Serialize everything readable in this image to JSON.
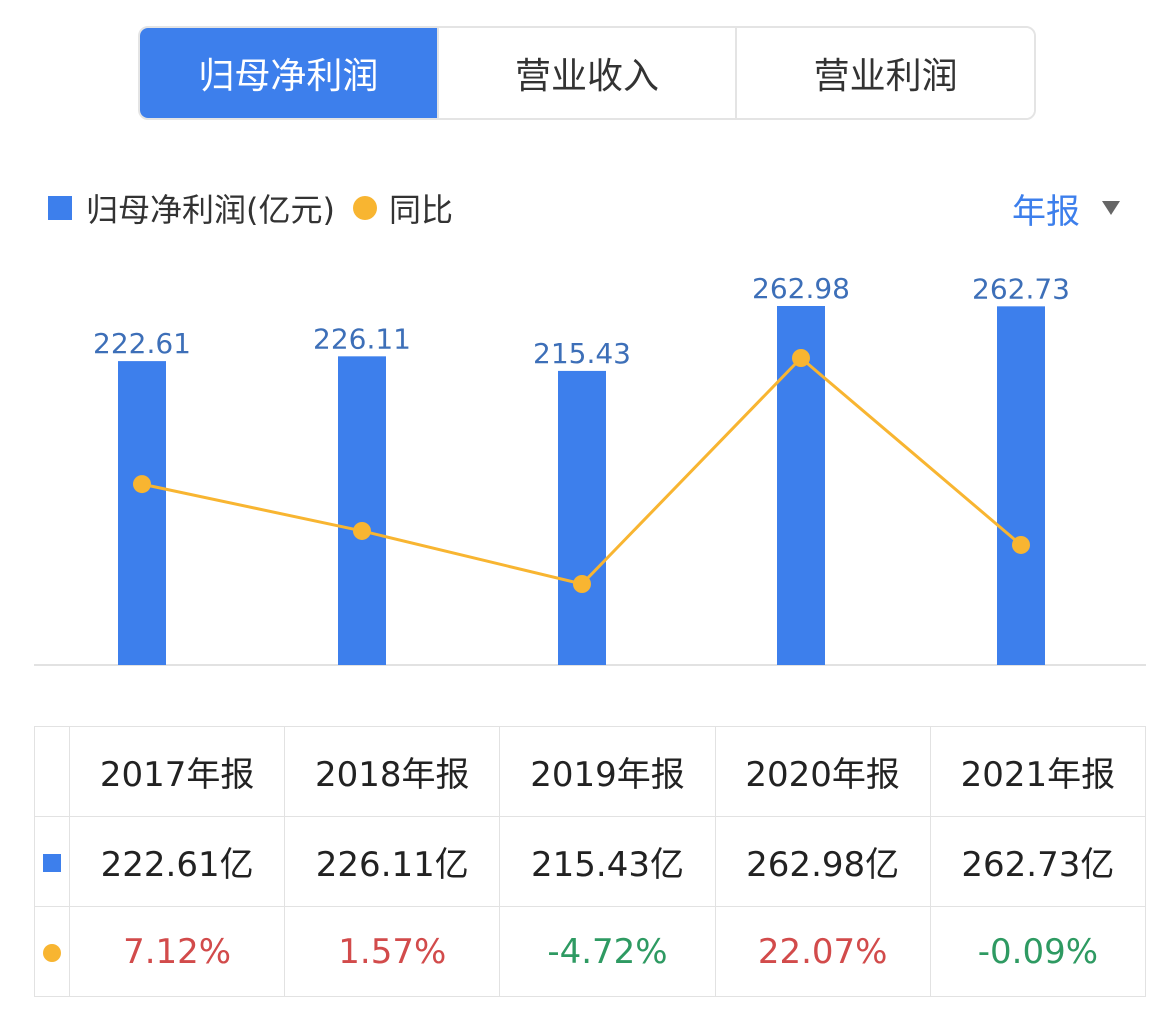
{
  "tabs": [
    {
      "label": "归母净利润",
      "active": true
    },
    {
      "label": "营业收入",
      "active": false
    },
    {
      "label": "营业利润",
      "active": false
    }
  ],
  "legend": {
    "bar_label": "归母净利润(亿元)",
    "line_label": "同比"
  },
  "period_selector": {
    "label": "年报"
  },
  "colors": {
    "bar": "#3d7fec",
    "line": "#f8b531",
    "bar_label": "#3d6fb8",
    "positive": "#d24b4b",
    "negative": "#2e9a62"
  },
  "chart_data": {
    "type": "bar",
    "categories": [
      "2017年报",
      "2018年报",
      "2019年报",
      "2020年报",
      "2021年报"
    ],
    "series": [
      {
        "name": "归母净利润(亿元)",
        "type": "bar",
        "values": [
          222.61,
          226.11,
          215.43,
          262.98,
          262.73
        ]
      },
      {
        "name": "同比",
        "type": "line",
        "values": [
          7.12,
          1.57,
          -4.72,
          22.07,
          -0.09
        ]
      }
    ],
    "bar_value_labels": [
      "222.61",
      "226.11",
      "215.43",
      "262.98",
      "262.73"
    ],
    "ylim": [
      0,
      262.98
    ],
    "grid": false
  },
  "table": {
    "headers": [
      "2017年报",
      "2018年报",
      "2019年报",
      "2020年报",
      "2021年报"
    ],
    "value_row": [
      "222.61亿",
      "226.11亿",
      "215.43亿",
      "262.98亿",
      "262.73亿"
    ],
    "yoy_row": [
      "7.12%",
      "1.57%",
      "-4.72%",
      "22.07%",
      "-0.09%"
    ]
  }
}
